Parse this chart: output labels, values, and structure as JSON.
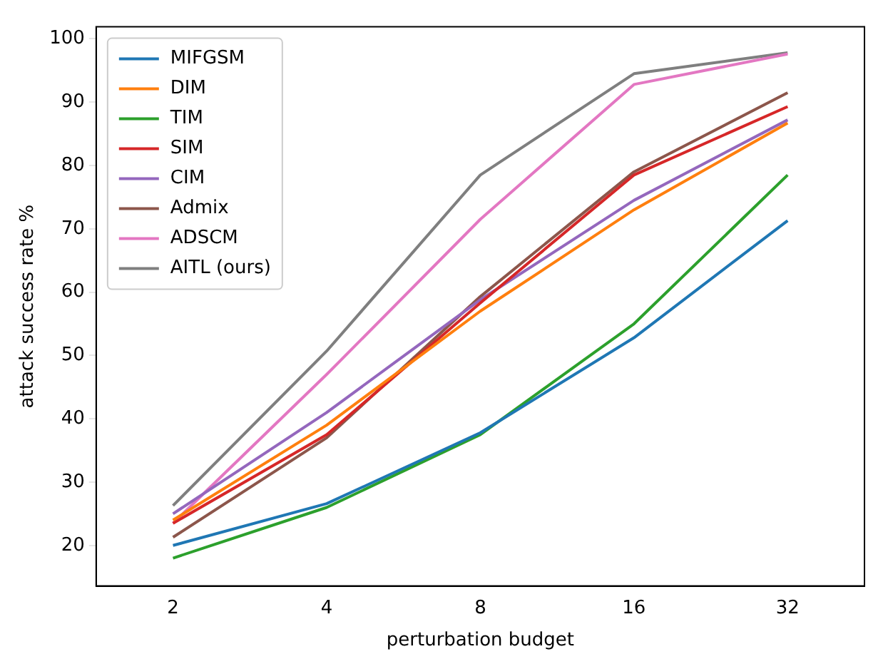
{
  "chart_data": {
    "type": "line",
    "xlabel": "perturbation budget",
    "ylabel": "attack success rate %",
    "categories": [
      "2",
      "4",
      "8",
      "16",
      "32"
    ],
    "series": [
      {
        "name": "MIFGSM",
        "color": "#1f77b4",
        "values": [
          20,
          26.6,
          37.8,
          52.8,
          71.3
        ]
      },
      {
        "name": "DIM",
        "color": "#ff7f0e",
        "values": [
          24,
          39,
          57,
          73,
          86.7
        ]
      },
      {
        "name": "TIM",
        "color": "#2ca02c",
        "values": [
          18,
          26,
          37.5,
          55,
          78.5
        ]
      },
      {
        "name": "SIM",
        "color": "#d62728",
        "values": [
          23.5,
          37.5,
          58.3,
          78.5,
          89.3
        ]
      },
      {
        "name": "CIM",
        "color": "#9467bd",
        "values": [
          25,
          41,
          58.8,
          74.5,
          87.2
        ]
      },
      {
        "name": "Admix",
        "color": "#8c564b",
        "values": [
          21.3,
          37,
          59.3,
          79,
          91.5
        ]
      },
      {
        "name": "ADSCM",
        "color": "#e377c2",
        "values": [
          23.5,
          47,
          71.5,
          92.8,
          97.6
        ]
      },
      {
        "name": "AITL (ours)",
        "color": "#7f7f7f",
        "values": [
          26.3,
          50.7,
          78.5,
          94.5,
          97.8
        ]
      }
    ],
    "ylim": [
      13.6,
      101.9
    ],
    "yticks": [
      20,
      30,
      40,
      50,
      60,
      70,
      80,
      90,
      100
    ],
    "grid": false,
    "legend": "top left",
    "marker": "none",
    "line_style": "solid"
  }
}
